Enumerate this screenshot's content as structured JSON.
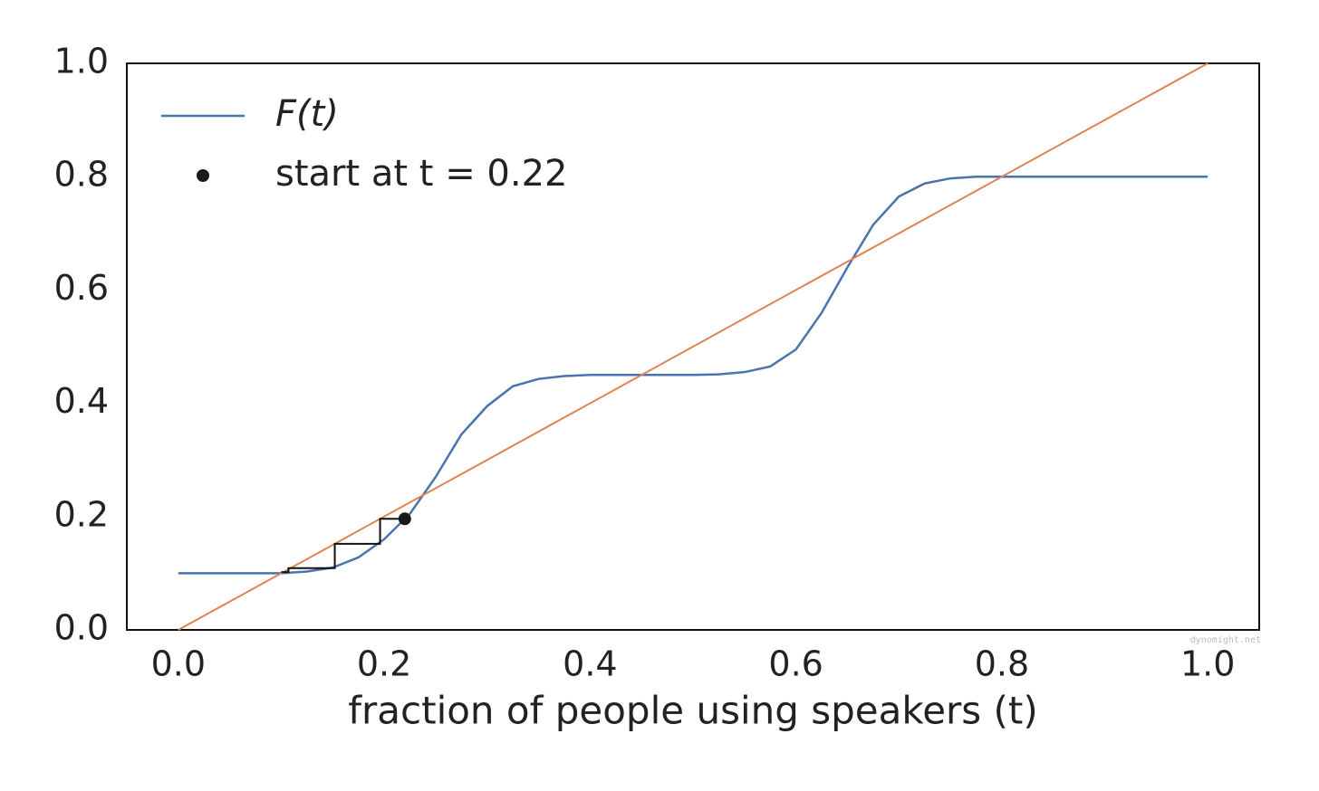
{
  "chart_data": {
    "type": "line",
    "xlabel": "fraction of people using speakers (t)",
    "xlim": [
      -0.05,
      1.05
    ],
    "ylim": [
      0,
      1
    ],
    "xticks": [
      {
        "value": 0,
        "label": "0.0"
      },
      0.2,
      0.4,
      0.6,
      0.8,
      {
        "value": 1,
        "label": "1.0"
      }
    ],
    "yticks": [
      {
        "value": 0,
        "label": "0.0"
      },
      0.2,
      0.4,
      0.6,
      0.8,
      {
        "value": 1,
        "label": "1.0"
      }
    ],
    "legend": "upper left",
    "watermark": "dynomight.net",
    "series": [
      {
        "name": "F(t)",
        "color": "#4c72b0",
        "x": [
          0,
          0.025,
          0.05,
          0.075,
          0.1,
          0.125,
          0.15,
          0.175,
          0.2,
          0.225,
          0.25,
          0.275,
          0.3,
          0.325,
          0.35,
          0.375,
          0.4,
          0.425,
          0.45,
          0.475,
          0.5,
          0.525,
          0.55,
          0.575,
          0.6,
          0.625,
          0.65,
          0.675,
          0.7,
          0.725,
          0.75,
          0.775,
          0.8,
          0.85,
          0.9,
          0.95,
          1
        ],
        "values": [
          0.1,
          0.1,
          0.1,
          0.1,
          0.1,
          0.103,
          0.11,
          0.128,
          0.16,
          0.205,
          0.27,
          0.345,
          0.395,
          0.43,
          0.443,
          0.448,
          0.45,
          0.45,
          0.45,
          0.45,
          0.45,
          0.451,
          0.455,
          0.465,
          0.495,
          0.56,
          0.64,
          0.715,
          0.765,
          0.788,
          0.797,
          0.8,
          0.8,
          0.8,
          0.8,
          0.8,
          0.8
        ]
      },
      {
        "color": "#dd8452",
        "x": [
          0,
          1
        ],
        "values": [
          0,
          1
        ]
      },
      {
        "color": "#111111",
        "x": [
          0.22,
          0.196,
          0.196,
          0.152,
          0.152,
          0.107,
          0.107,
          0.1
        ],
        "values": [
          0.196,
          0.196,
          0.152,
          0.152,
          0.109,
          0.109,
          0.102,
          0.102
        ]
      },
      {
        "name": "start at t = 0.22",
        "color": "#1a1a1a",
        "marker": "o",
        "x": [
          0.22
        ],
        "values": [
          0.196
        ]
      }
    ]
  }
}
